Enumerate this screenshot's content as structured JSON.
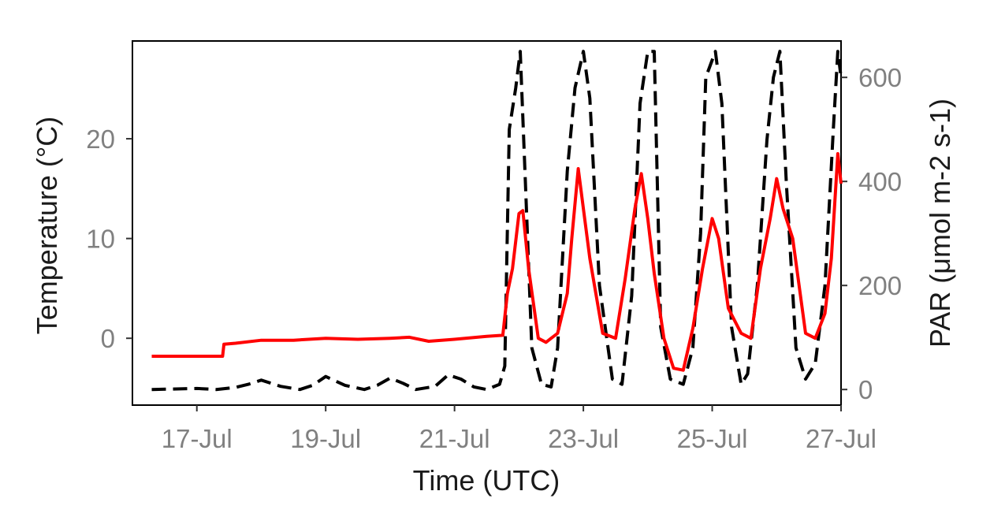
{
  "chart_data": {
    "type": "line",
    "xlabel": "Time (UTC)",
    "ylabel_left": "Temperature (°C)",
    "ylabel_right": "PAR (μmol m-2 s-1)",
    "x_tick_labels": [
      "17-Jul",
      "19-Jul",
      "21-Jul",
      "23-Jul",
      "25-Jul",
      "27-Jul"
    ],
    "x_tick_days": [
      17,
      19,
      21,
      23,
      25,
      27
    ],
    "xlim_days": [
      16.0,
      27.0
    ],
    "ylim_left": [
      -6.7,
      29.8
    ],
    "ylim_right": [
      -30,
      670
    ],
    "y_left_ticks": [
      0,
      10,
      20
    ],
    "y_right_ticks": [
      0,
      200,
      400,
      600
    ],
    "grid": false,
    "series": [
      {
        "axis": "left",
        "color": "#ff0000",
        "style": "solid",
        "x": [
          16.3,
          17.4,
          17.42,
          17.6,
          18.0,
          18.5,
          19.0,
          19.5,
          20.0,
          20.3,
          20.6,
          21.0,
          21.5,
          21.75,
          21.82,
          21.9,
          22.0,
          22.06,
          22.15,
          22.3,
          22.42,
          22.5,
          22.6,
          22.75,
          22.82,
          22.92,
          23.0,
          23.1,
          23.3,
          23.5,
          23.65,
          23.8,
          23.9,
          24.0,
          24.1,
          24.25,
          24.4,
          24.55,
          24.7,
          24.85,
          25.0,
          25.1,
          25.25,
          25.45,
          25.6,
          25.75,
          25.9,
          26.0,
          26.1,
          26.25,
          26.45,
          26.6,
          26.75,
          26.85,
          26.95,
          27.0
        ],
        "y": [
          -1.8,
          -1.8,
          -0.6,
          -0.5,
          -0.2,
          -0.2,
          0.0,
          -0.1,
          0.0,
          0.1,
          -0.3,
          -0.1,
          0.2,
          0.3,
          4.5,
          7.0,
          12.5,
          12.8,
          7.0,
          0.0,
          -0.4,
          0.0,
          0.5,
          4.5,
          10.0,
          17.0,
          13.0,
          8.0,
          0.5,
          0.0,
          6.0,
          13.0,
          16.5,
          12.0,
          6.5,
          0.0,
          -3.0,
          -3.2,
          1.0,
          7.0,
          12.0,
          10.0,
          3.0,
          0.5,
          0.0,
          7.0,
          12.0,
          16.0,
          13.0,
          10.0,
          0.5,
          0.0,
          2.5,
          8.0,
          18.5,
          15.5
        ]
      },
      {
        "axis": "right",
        "color": "#000000",
        "style": "dashed",
        "x": [
          16.3,
          17.0,
          17.3,
          17.6,
          17.8,
          18.0,
          18.3,
          18.6,
          18.8,
          19.0,
          19.3,
          19.6,
          19.8,
          20.0,
          20.2,
          20.4,
          20.7,
          20.9,
          21.1,
          21.3,
          21.5,
          21.7,
          21.78,
          21.85,
          21.95,
          22.02,
          22.1,
          22.2,
          22.35,
          22.5,
          22.6,
          22.75,
          22.87,
          23.0,
          23.1,
          23.25,
          23.45,
          23.6,
          23.75,
          23.88,
          24.0,
          24.1,
          24.2,
          24.35,
          24.55,
          24.7,
          24.82,
          24.9,
          25.05,
          25.15,
          25.3,
          25.45,
          25.55,
          25.7,
          25.85,
          25.95,
          26.05,
          26.15,
          26.3,
          26.45,
          26.6,
          26.75,
          26.88,
          26.95,
          27.0
        ],
        "y": [
          0,
          2,
          0,
          4,
          10,
          18,
          6,
          0,
          8,
          25,
          8,
          0,
          8,
          22,
          12,
          0,
          6,
          28,
          20,
          5,
          0,
          10,
          45,
          500,
          580,
          650,
          400,
          80,
          10,
          5,
          80,
          420,
          580,
          650,
          560,
          200,
          20,
          10,
          180,
          550,
          650,
          650,
          120,
          20,
          10,
          80,
          300,
          600,
          650,
          550,
          120,
          10,
          30,
          200,
          480,
          600,
          650,
          400,
          80,
          20,
          50,
          200,
          500,
          650,
          600
        ]
      }
    ]
  }
}
